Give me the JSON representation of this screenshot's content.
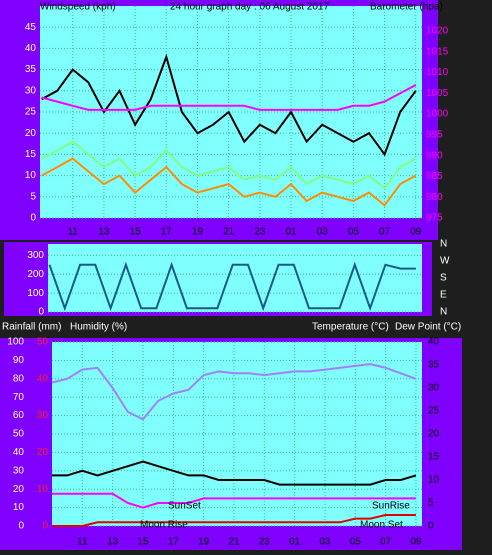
{
  "chart_data": [
    {
      "type": "line",
      "title": "24 hour graph day : 06 August 2017",
      "axis_labels": [
        "Windspeed (kph)",
        "Barometer (hpa)"
      ],
      "x": [
        9,
        10,
        11,
        12,
        13,
        14,
        15,
        16,
        17,
        18,
        19,
        20,
        21,
        22,
        23,
        24,
        25,
        26,
        27,
        28,
        29,
        30,
        31,
        32,
        33
      ],
      "xlim": [
        8.9,
        33.4
      ],
      "xticks": [
        11,
        13,
        15,
        17,
        19,
        21,
        23,
        {
          "value": 25,
          "label": "01"
        },
        {
          "value": 27,
          "label": "03"
        },
        {
          "value": 29,
          "label": "05"
        },
        {
          "value": 31,
          "label": "07"
        },
        {
          "value": 33,
          "label": "09"
        }
      ],
      "ylim": [
        0,
        50
      ],
      "yticks": [
        0,
        5,
        10,
        15,
        20,
        25,
        30,
        35,
        40,
        45
      ],
      "y2lim": [
        975,
        1026
      ],
      "y2ticks": [
        975,
        980,
        985,
        990,
        995,
        1000,
        1005,
        1010,
        1015,
        1020
      ],
      "grid": true,
      "series": [
        {
          "color": "#ff8c00",
          "values": [
            10,
            12,
            14,
            11,
            8,
            10,
            6,
            9,
            12,
            8,
            6,
            7,
            8,
            5,
            6,
            5,
            8,
            4,
            6,
            5,
            4,
            6,
            3,
            8,
            10
          ]
        },
        {
          "color": "#80ff80",
          "values": [
            14,
            16,
            18,
            15,
            12,
            14,
            10,
            12,
            16,
            12,
            10,
            11,
            12,
            9,
            10,
            9,
            12,
            8,
            10,
            9,
            8,
            10,
            7,
            12,
            14
          ]
        },
        {
          "color": "#000000",
          "values": [
            28,
            30,
            35,
            32,
            25,
            30,
            22,
            28,
            38,
            25,
            20,
            22,
            25,
            18,
            22,
            20,
            25,
            18,
            22,
            20,
            18,
            20,
            15,
            25,
            30
          ]
        },
        {
          "color": "#ff00ff",
          "axis": "y2",
          "values": [
            1004,
            1003,
            1002,
            1001,
            1001,
            1001,
            1001,
            1002,
            1002,
            1002,
            1002,
            1002,
            1002,
            1002,
            1001,
            1001,
            1001,
            1001,
            1001,
            1001,
            1002,
            1002,
            1003,
            1005,
            1007
          ]
        }
      ]
    },
    {
      "type": "line",
      "x": [
        9,
        10,
        11,
        12,
        13,
        14,
        15,
        16,
        17,
        18,
        19,
        20,
        21,
        22,
        23,
        24,
        25,
        26,
        27,
        28,
        29,
        30,
        31,
        32,
        33
      ],
      "xlim": [
        8.9,
        33.4
      ],
      "ylim": [
        0,
        360
      ],
      "yticks": [
        0,
        100,
        200,
        300
      ],
      "y2lim": [
        0,
        360
      ],
      "y2ticks": [
        {
          "value": 360,
          "label": "N"
        },
        {
          "value": 270,
          "label": "W"
        },
        {
          "value": 180,
          "label": "S"
        },
        {
          "value": 90,
          "label": "E"
        },
        {
          "value": 0,
          "label": "N"
        }
      ],
      "grid": true,
      "series": [
        {
          "color": "#1a5a8a",
          "values": [
            250,
            20,
            250,
            250,
            20,
            250,
            20,
            20,
            250,
            20,
            20,
            20,
            250,
            250,
            20,
            250,
            250,
            20,
            20,
            20,
            250,
            20,
            250,
            230,
            230
          ]
        }
      ]
    },
    {
      "type": "line",
      "axis_labels": [
        "Rainfall (mm)",
        "Humidity (%)",
        "Temperature (°C)",
        "Dew Point (°C)"
      ],
      "annotations": [
        "SunSet",
        "Moon Rise",
        "SunRise",
        "Moon Set"
      ],
      "x": [
        9,
        10,
        11,
        12,
        13,
        14,
        15,
        16,
        17,
        18,
        19,
        20,
        21,
        22,
        23,
        24,
        25,
        26,
        27,
        28,
        29,
        30,
        31,
        32,
        33
      ],
      "xlim": [
        9,
        33.4
      ],
      "xticks": [
        11,
        13,
        15,
        17,
        19,
        21,
        23,
        {
          "value": 25,
          "label": "01"
        },
        {
          "value": 27,
          "label": "03"
        },
        {
          "value": 29,
          "label": "05"
        },
        {
          "value": 31,
          "label": "07"
        },
        {
          "value": 33,
          "label": "09"
        }
      ],
      "ylim": [
        0,
        100
      ],
      "yticks": [
        0,
        10,
        20,
        30,
        40,
        50,
        60,
        70,
        80,
        90,
        100
      ],
      "y2lim": [
        0,
        40
      ],
      "y2ticks": [
        0,
        5,
        10,
        15,
        20,
        25,
        30,
        35,
        40
      ],
      "y3lim": [
        0,
        50
      ],
      "y3ticks": [
        0,
        10,
        20,
        30,
        40,
        50
      ],
      "grid": true,
      "series": [
        {
          "color": "#a080ff",
          "values": [
            78,
            80,
            85,
            86,
            75,
            62,
            58,
            68,
            72,
            74,
            82,
            84,
            83,
            83,
            82,
            83,
            84,
            84,
            85,
            86,
            87,
            88,
            86,
            83,
            80
          ]
        },
        {
          "color": "#000000",
          "axis": "y2",
          "values": [
            11,
            11,
            12,
            11,
            12,
            13,
            14,
            13,
            12,
            11,
            11,
            10,
            10,
            10,
            10,
            9,
            9,
            9,
            9,
            9,
            9,
            9,
            10,
            10,
            11
          ]
        },
        {
          "color": "#ff00ff",
          "axis": "y2",
          "values": [
            7,
            7,
            7,
            7,
            7,
            5,
            4,
            5,
            5,
            5,
            6,
            6,
            6,
            6,
            6,
            6,
            6,
            6,
            6,
            6,
            6,
            6,
            6,
            6,
            6
          ]
        },
        {
          "color": "#e00000",
          "axis": "y3",
          "values": [
            0,
            0,
            0,
            1,
            1,
            1,
            1,
            1,
            1,
            1,
            1,
            1,
            1,
            1,
            1,
            1,
            1,
            1,
            1,
            1,
            2,
            2,
            3,
            3,
            3
          ]
        }
      ]
    }
  ]
}
